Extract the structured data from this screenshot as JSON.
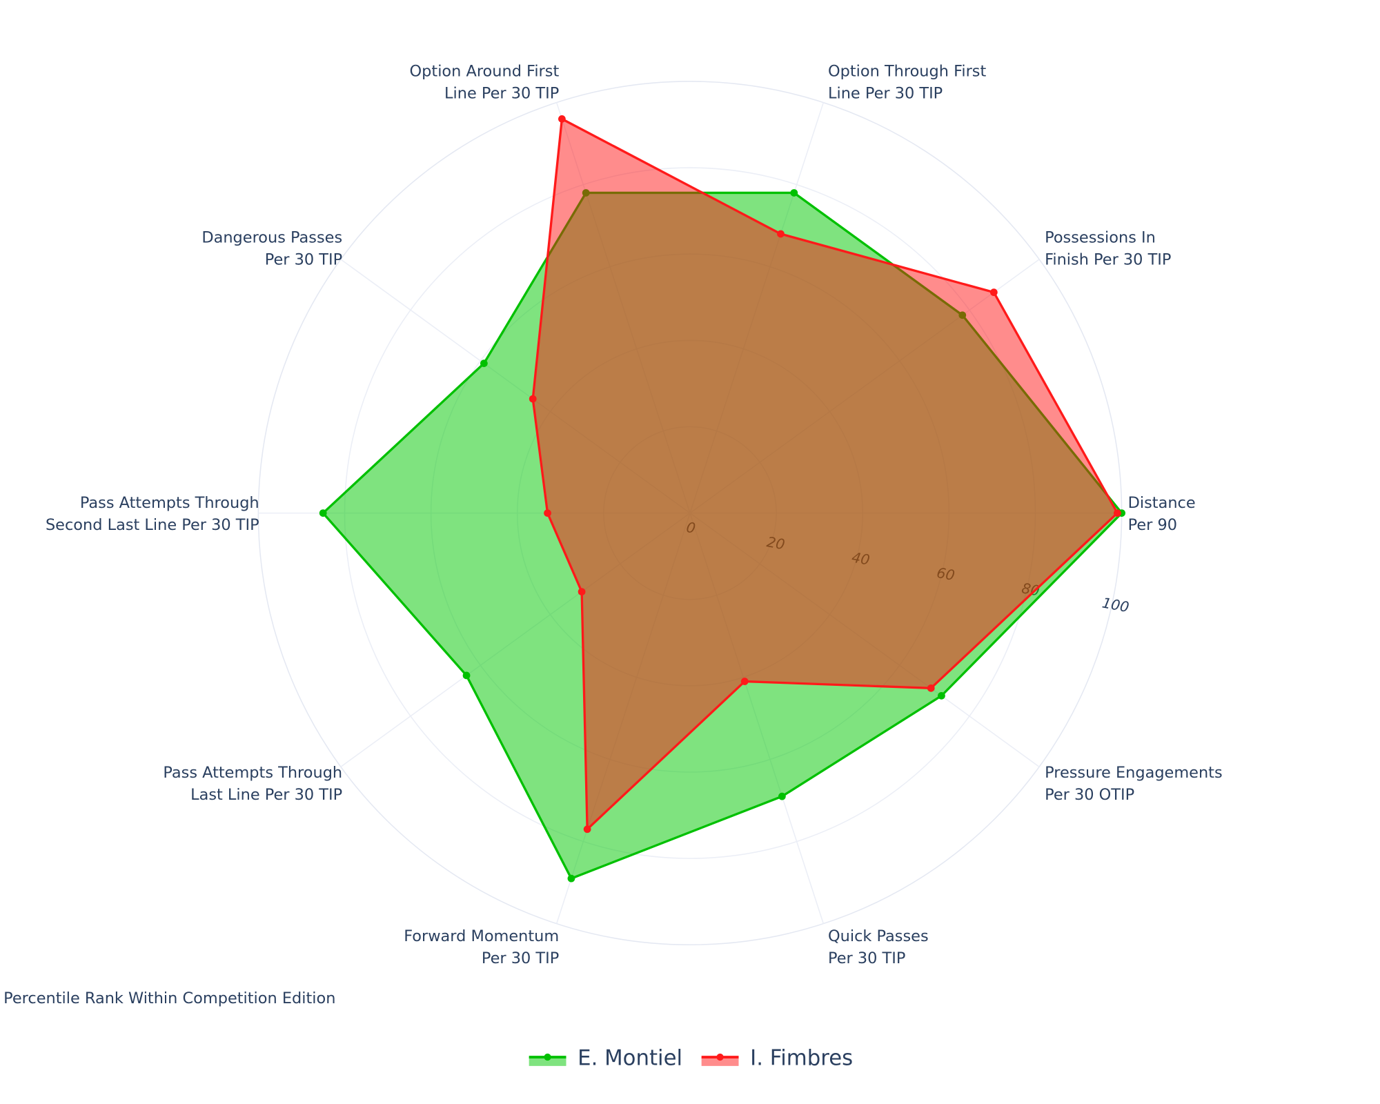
{
  "chart_data": {
    "type": "radar",
    "caption": "Percentile Rank Within Competition Edition",
    "radial_range": [
      0,
      100
    ],
    "radial_ticks": [
      "0",
      "20",
      "40",
      "60",
      "80",
      "100"
    ],
    "grid": true,
    "legend_placement": "bottom-center",
    "axes": [
      {
        "label": [
          "Distance",
          "Per 90"
        ]
      },
      {
        "label": [
          "Possessions In",
          "Finish Per 30 TIP"
        ]
      },
      {
        "label": [
          "Option Through First",
          "Line Per 30 TIP"
        ]
      },
      {
        "label": [
          "Option Around First",
          "Line Per 30 TIP"
        ]
      },
      {
        "label": [
          "Dangerous Passes",
          "Per 30 TIP"
        ]
      },
      {
        "label": [
          "Pass Attempts Through",
          "Second Last Line Per 30 TIP"
        ]
      },
      {
        "label": [
          "Pass Attempts Through",
          "Last Line Per 30 TIP"
        ]
      },
      {
        "label": [
          "Forward Momentum",
          "Per 30 TIP"
        ]
      },
      {
        "label": [
          "Quick Passes",
          "Per 30 TIP"
        ]
      },
      {
        "label": [
          "Pressure Engagements",
          "Per 30 OTIP"
        ]
      }
    ],
    "series": [
      {
        "name": "E. Montiel",
        "line_color": "#00c000",
        "fill_color": "rgba(0,200,0,0.5)",
        "values": [
          100,
          78,
          78,
          78,
          59,
          85,
          64,
          89,
          69,
          72
        ]
      },
      {
        "name": "I. Fimbres",
        "line_color": "#ff1a1a",
        "fill_color": "rgba(255,10,10,0.47)",
        "values": [
          99,
          87,
          68,
          96,
          45,
          33,
          31,
          77,
          41,
          69
        ]
      }
    ]
  }
}
